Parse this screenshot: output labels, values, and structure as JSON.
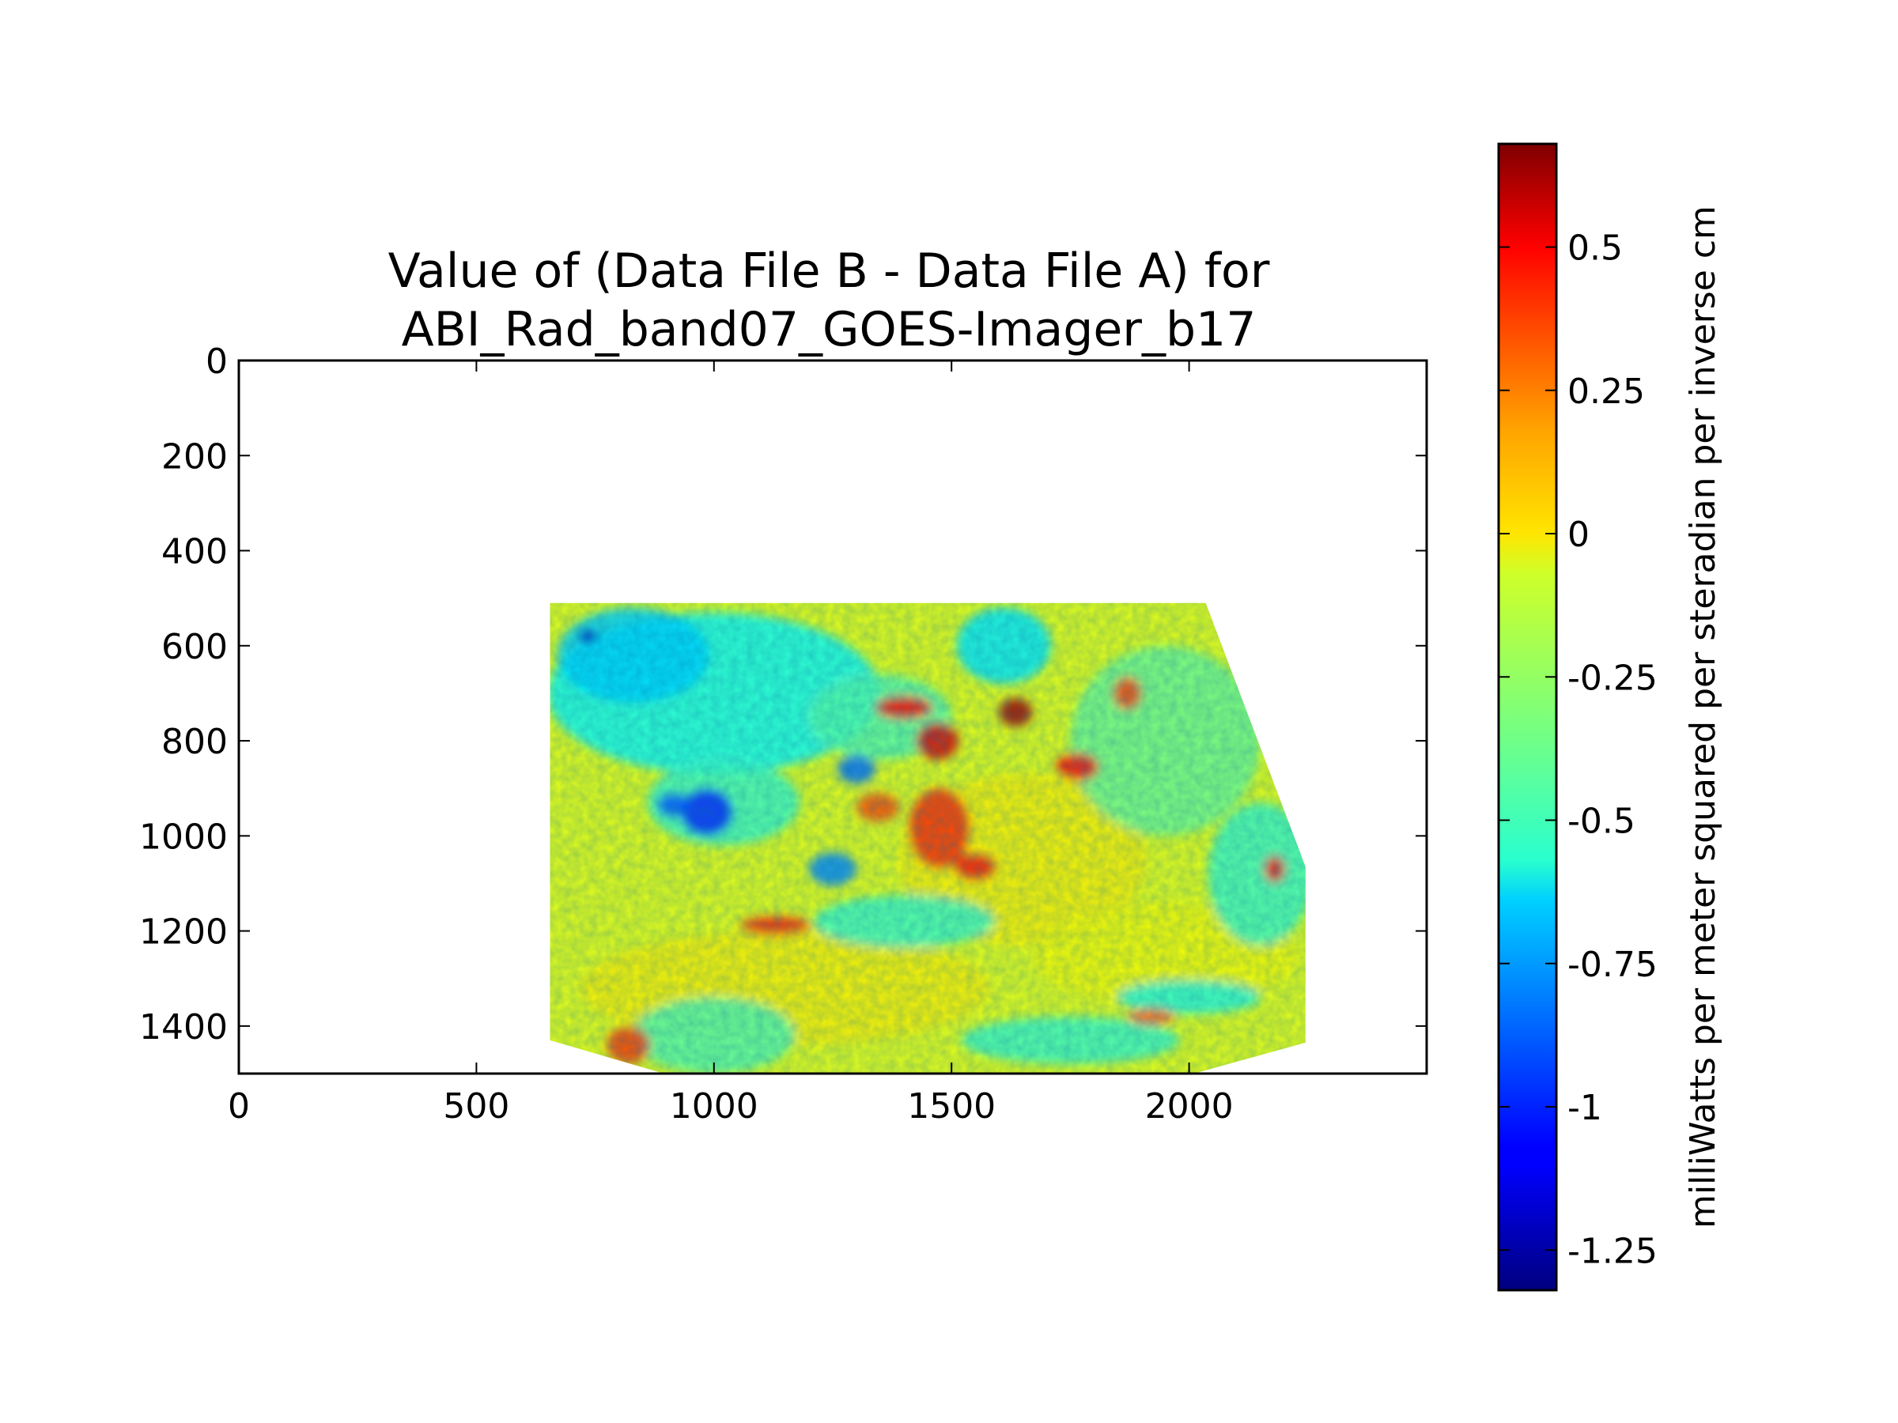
{
  "chart_data": {
    "type": "heatmap",
    "title_lines": [
      "Value of (Data File B - Data File A) for",
      "ABI_Rad_band07_GOES-Imager_b17"
    ],
    "xlabel": "",
    "ylabel": "",
    "xlim": [
      0,
      2500
    ],
    "ylim": [
      1500,
      0
    ],
    "y_inverted": true,
    "grid": false,
    "x_ticks": [
      {
        "value": 0,
        "label": "0"
      },
      {
        "value": 500,
        "label": "500"
      },
      {
        "value": 1000,
        "label": "1000"
      },
      {
        "value": 1500,
        "label": "1500"
      },
      {
        "value": 2000,
        "label": "2000"
      }
    ],
    "y_ticks": [
      {
        "value": 0,
        "label": "0"
      },
      {
        "value": 200,
        "label": "200"
      },
      {
        "value": 400,
        "label": "400"
      },
      {
        "value": 600,
        "label": "600"
      },
      {
        "value": 800,
        "label": "800"
      },
      {
        "value": 1000,
        "label": "1000"
      },
      {
        "value": 1200,
        "label": "1200"
      },
      {
        "value": 1400,
        "label": "1400"
      }
    ],
    "data_region_outline": [
      [
        655,
        510
      ],
      [
        2035,
        510
      ],
      [
        2245,
        1065
      ],
      [
        2245,
        1435
      ],
      [
        2010,
        1500
      ],
      [
        895,
        1500
      ],
      [
        655,
        1430
      ]
    ],
    "colorbar": {
      "label": "milliWatts per meter squared per steradian per inverse cm",
      "vmin": -1.32,
      "vmax": 0.68,
      "colormap": "jet",
      "ticks": [
        {
          "value": 0.5,
          "label": "0.5"
        },
        {
          "value": 0.25,
          "label": "0.25"
        },
        {
          "value": 0,
          "label": "0"
        },
        {
          "value": -0.25,
          "label": "-0.25"
        },
        {
          "value": -0.5,
          "label": "-0.5"
        },
        {
          "value": -0.75,
          "label": "-0.75"
        },
        {
          "value": -1,
          "label": "-1"
        },
        {
          "value": -1.25,
          "label": "-1.25"
        }
      ]
    },
    "field_background_value": -0.12,
    "field_features": [
      {
        "x": 1150,
        "y": 1320,
        "rx": 430,
        "ry": 120,
        "value": -0.05
      },
      {
        "x": 1650,
        "y": 1050,
        "rx": 260,
        "ry": 180,
        "value": -0.05
      },
      {
        "x": 1950,
        "y": 1250,
        "rx": 280,
        "ry": 110,
        "value": -0.08
      },
      {
        "x": 1000,
        "y": 700,
        "rx": 350,
        "ry": 170,
        "value": -0.55
      },
      {
        "x": 830,
        "y": 620,
        "rx": 160,
        "ry": 100,
        "value": -0.65
      },
      {
        "x": 1020,
        "y": 930,
        "rx": 160,
        "ry": 90,
        "value": -0.45
      },
      {
        "x": 1000,
        "y": 1420,
        "rx": 170,
        "ry": 80,
        "value": -0.4
      },
      {
        "x": 1950,
        "y": 800,
        "rx": 200,
        "ry": 200,
        "value": -0.35
      },
      {
        "x": 2150,
        "y": 1080,
        "rx": 110,
        "ry": 150,
        "value": -0.45
      },
      {
        "x": 1750,
        "y": 1430,
        "rx": 230,
        "ry": 50,
        "value": -0.45
      },
      {
        "x": 1350,
        "y": 750,
        "rx": 150,
        "ry": 90,
        "value": -0.4
      },
      {
        "x": 1400,
        "y": 1180,
        "rx": 190,
        "ry": 55,
        "value": -0.45
      },
      {
        "x": 2000,
        "y": 1340,
        "rx": 150,
        "ry": 35,
        "value": -0.5
      },
      {
        "x": 1610,
        "y": 600,
        "rx": 100,
        "ry": 80,
        "value": -0.6
      },
      {
        "x": 985,
        "y": 950,
        "rx": 55,
        "ry": 50,
        "value": -1.0
      },
      {
        "x": 915,
        "y": 935,
        "rx": 35,
        "ry": 25,
        "value": -0.9
      },
      {
        "x": 735,
        "y": 580,
        "rx": 20,
        "ry": 15,
        "value": -1.2
      },
      {
        "x": 1300,
        "y": 860,
        "rx": 40,
        "ry": 30,
        "value": -0.85
      },
      {
        "x": 1250,
        "y": 1070,
        "rx": 50,
        "ry": 35,
        "value": -0.8
      },
      {
        "x": 1475,
        "y": 985,
        "rx": 65,
        "ry": 85,
        "value": 0.35
      },
      {
        "x": 1550,
        "y": 1065,
        "rx": 45,
        "ry": 30,
        "value": 0.4
      },
      {
        "x": 1400,
        "y": 730,
        "rx": 60,
        "ry": 25,
        "value": 0.42
      },
      {
        "x": 1470,
        "y": 800,
        "rx": 45,
        "ry": 40,
        "value": 0.5
      },
      {
        "x": 1635,
        "y": 740,
        "rx": 35,
        "ry": 30,
        "value": 0.62
      },
      {
        "x": 1765,
        "y": 855,
        "rx": 45,
        "ry": 30,
        "value": 0.42
      },
      {
        "x": 1870,
        "y": 700,
        "rx": 30,
        "ry": 35,
        "value": 0.3
      },
      {
        "x": 1345,
        "y": 940,
        "rx": 45,
        "ry": 30,
        "value": 0.28
      },
      {
        "x": 1130,
        "y": 1190,
        "rx": 75,
        "ry": 20,
        "value": 0.38
      },
      {
        "x": 820,
        "y": 1440,
        "rx": 45,
        "ry": 40,
        "value": 0.32
      },
      {
        "x": 2180,
        "y": 1070,
        "rx": 22,
        "ry": 28,
        "value": 0.4
      },
      {
        "x": 1920,
        "y": 1380,
        "rx": 50,
        "ry": 18,
        "value": 0.25
      }
    ]
  }
}
